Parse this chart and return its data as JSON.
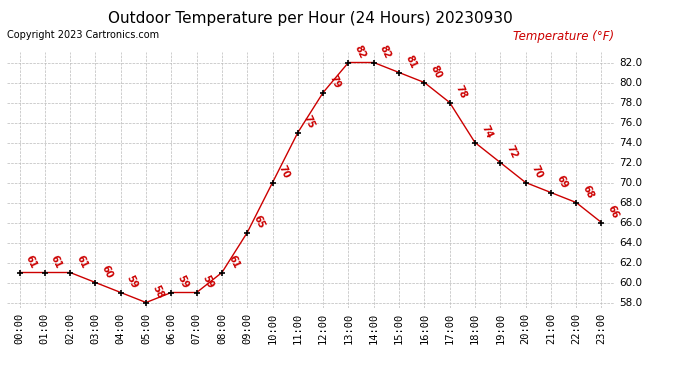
{
  "title": "Outdoor Temperature per Hour (24 Hours) 20230930",
  "copyright": "Copyright 2023 Cartronics.com",
  "ylabel": "Temperature (°F)",
  "hours": [
    0,
    1,
    2,
    3,
    4,
    5,
    6,
    7,
    8,
    9,
    10,
    11,
    12,
    13,
    14,
    15,
    16,
    17,
    18,
    19,
    20,
    21,
    22,
    23
  ],
  "temps": [
    61,
    61,
    61,
    60,
    59,
    58,
    59,
    59,
    61,
    65,
    70,
    75,
    79,
    82,
    82,
    81,
    80,
    78,
    74,
    72,
    70,
    69,
    68,
    66
  ],
  "xlabels": [
    "00:00",
    "01:00",
    "02:00",
    "03:00",
    "04:00",
    "05:00",
    "06:00",
    "07:00",
    "08:00",
    "09:00",
    "10:00",
    "11:00",
    "12:00",
    "13:00",
    "14:00",
    "15:00",
    "16:00",
    "17:00",
    "18:00",
    "19:00",
    "20:00",
    "21:00",
    "22:00",
    "23:00"
  ],
  "ylim": [
    57.5,
    83.0
  ],
  "yticks": [
    58.0,
    60.0,
    62.0,
    64.0,
    66.0,
    68.0,
    70.0,
    72.0,
    74.0,
    76.0,
    78.0,
    80.0,
    82.0
  ],
  "line_color": "#cc0000",
  "marker_color": "#000000",
  "label_color": "#cc0000",
  "bg_color": "#ffffff",
  "grid_color": "#bbbbbb",
  "title_fontsize": 11,
  "axis_fontsize": 7.5,
  "label_fontsize": 7,
  "copyright_fontsize": 7,
  "ylabel_color": "#cc0000"
}
